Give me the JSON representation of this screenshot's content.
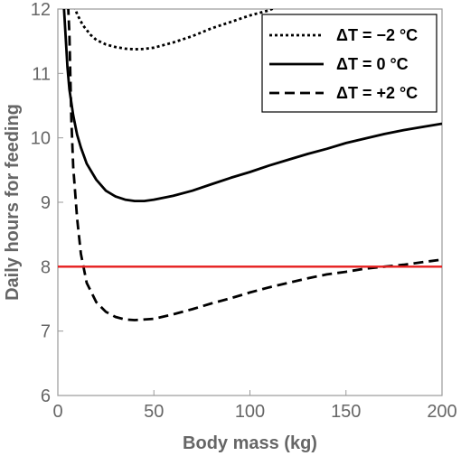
{
  "chart_data": {
    "type": "line",
    "title": "",
    "xlabel": "Body mass (kg)",
    "ylabel": "Daily hours for feeding",
    "xlim": [
      0,
      200
    ],
    "ylim": [
      6,
      12
    ],
    "x_ticks": [
      0,
      50,
      100,
      150,
      200
    ],
    "y_ticks": [
      6,
      7,
      8,
      9,
      10,
      11,
      12
    ],
    "grid": false,
    "legend_position": "top-right",
    "series": [
      {
        "name": "ΔT = −2 °C",
        "dash": "dotted",
        "color": "#000000",
        "points": [
          [
            4,
            12.7
          ],
          [
            6,
            12.4
          ],
          [
            8,
            12.1
          ],
          [
            10,
            11.92
          ],
          [
            13,
            11.75
          ],
          [
            17,
            11.6
          ],
          [
            20,
            11.52
          ],
          [
            25,
            11.45
          ],
          [
            30,
            11.41
          ],
          [
            35,
            11.385
          ],
          [
            40,
            11.375
          ],
          [
            45,
            11.38
          ],
          [
            50,
            11.4
          ],
          [
            60,
            11.48
          ],
          [
            70,
            11.58
          ],
          [
            80,
            11.7
          ],
          [
            90,
            11.8
          ],
          [
            100,
            11.9
          ],
          [
            110,
            11.98
          ],
          [
            115,
            12.05
          ]
        ]
      },
      {
        "name": "ΔT = 0 °C",
        "dash": "solid",
        "color": "#000000",
        "points": [
          [
            2,
            12.6
          ],
          [
            3,
            12.1
          ],
          [
            4,
            11.6
          ],
          [
            5,
            11.1
          ],
          [
            6,
            10.75
          ],
          [
            8,
            10.35
          ],
          [
            10,
            10.05
          ],
          [
            12,
            9.85
          ],
          [
            15,
            9.6
          ],
          [
            20,
            9.35
          ],
          [
            25,
            9.18
          ],
          [
            30,
            9.09
          ],
          [
            35,
            9.04
          ],
          [
            40,
            9.02
          ],
          [
            45,
            9.02
          ],
          [
            50,
            9.04
          ],
          [
            60,
            9.1
          ],
          [
            70,
            9.18
          ],
          [
            80,
            9.28
          ],
          [
            90,
            9.38
          ],
          [
            100,
            9.47
          ],
          [
            110,
            9.57
          ],
          [
            120,
            9.66
          ],
          [
            130,
            9.75
          ],
          [
            140,
            9.83
          ],
          [
            150,
            9.92
          ],
          [
            160,
            9.99
          ],
          [
            170,
            10.06
          ],
          [
            180,
            10.12
          ],
          [
            190,
            10.17
          ],
          [
            200,
            10.22
          ]
        ]
      },
      {
        "name": "ΔT = +2 °C",
        "dash": "dashed",
        "color": "#000000",
        "points": [
          [
            5,
            12.3
          ],
          [
            6,
            11.6
          ],
          [
            7,
            10.3
          ],
          [
            8,
            9.55
          ],
          [
            10,
            8.75
          ],
          [
            12,
            8.2
          ],
          [
            15,
            7.75
          ],
          [
            20,
            7.45
          ],
          [
            25,
            7.3
          ],
          [
            30,
            7.22
          ],
          [
            35,
            7.18
          ],
          [
            40,
            7.17
          ],
          [
            50,
            7.19
          ],
          [
            60,
            7.26
          ],
          [
            70,
            7.34
          ],
          [
            80,
            7.43
          ],
          [
            90,
            7.51
          ],
          [
            100,
            7.6
          ],
          [
            110,
            7.68
          ],
          [
            120,
            7.75
          ],
          [
            130,
            7.82
          ],
          [
            140,
            7.88
          ],
          [
            150,
            7.92
          ],
          [
            160,
            7.97
          ],
          [
            170,
            8.0
          ],
          [
            180,
            8.03
          ],
          [
            190,
            8.07
          ],
          [
            200,
            8.11
          ]
        ]
      }
    ],
    "reference_line": {
      "y": 8,
      "color": "#e61e1e"
    }
  }
}
